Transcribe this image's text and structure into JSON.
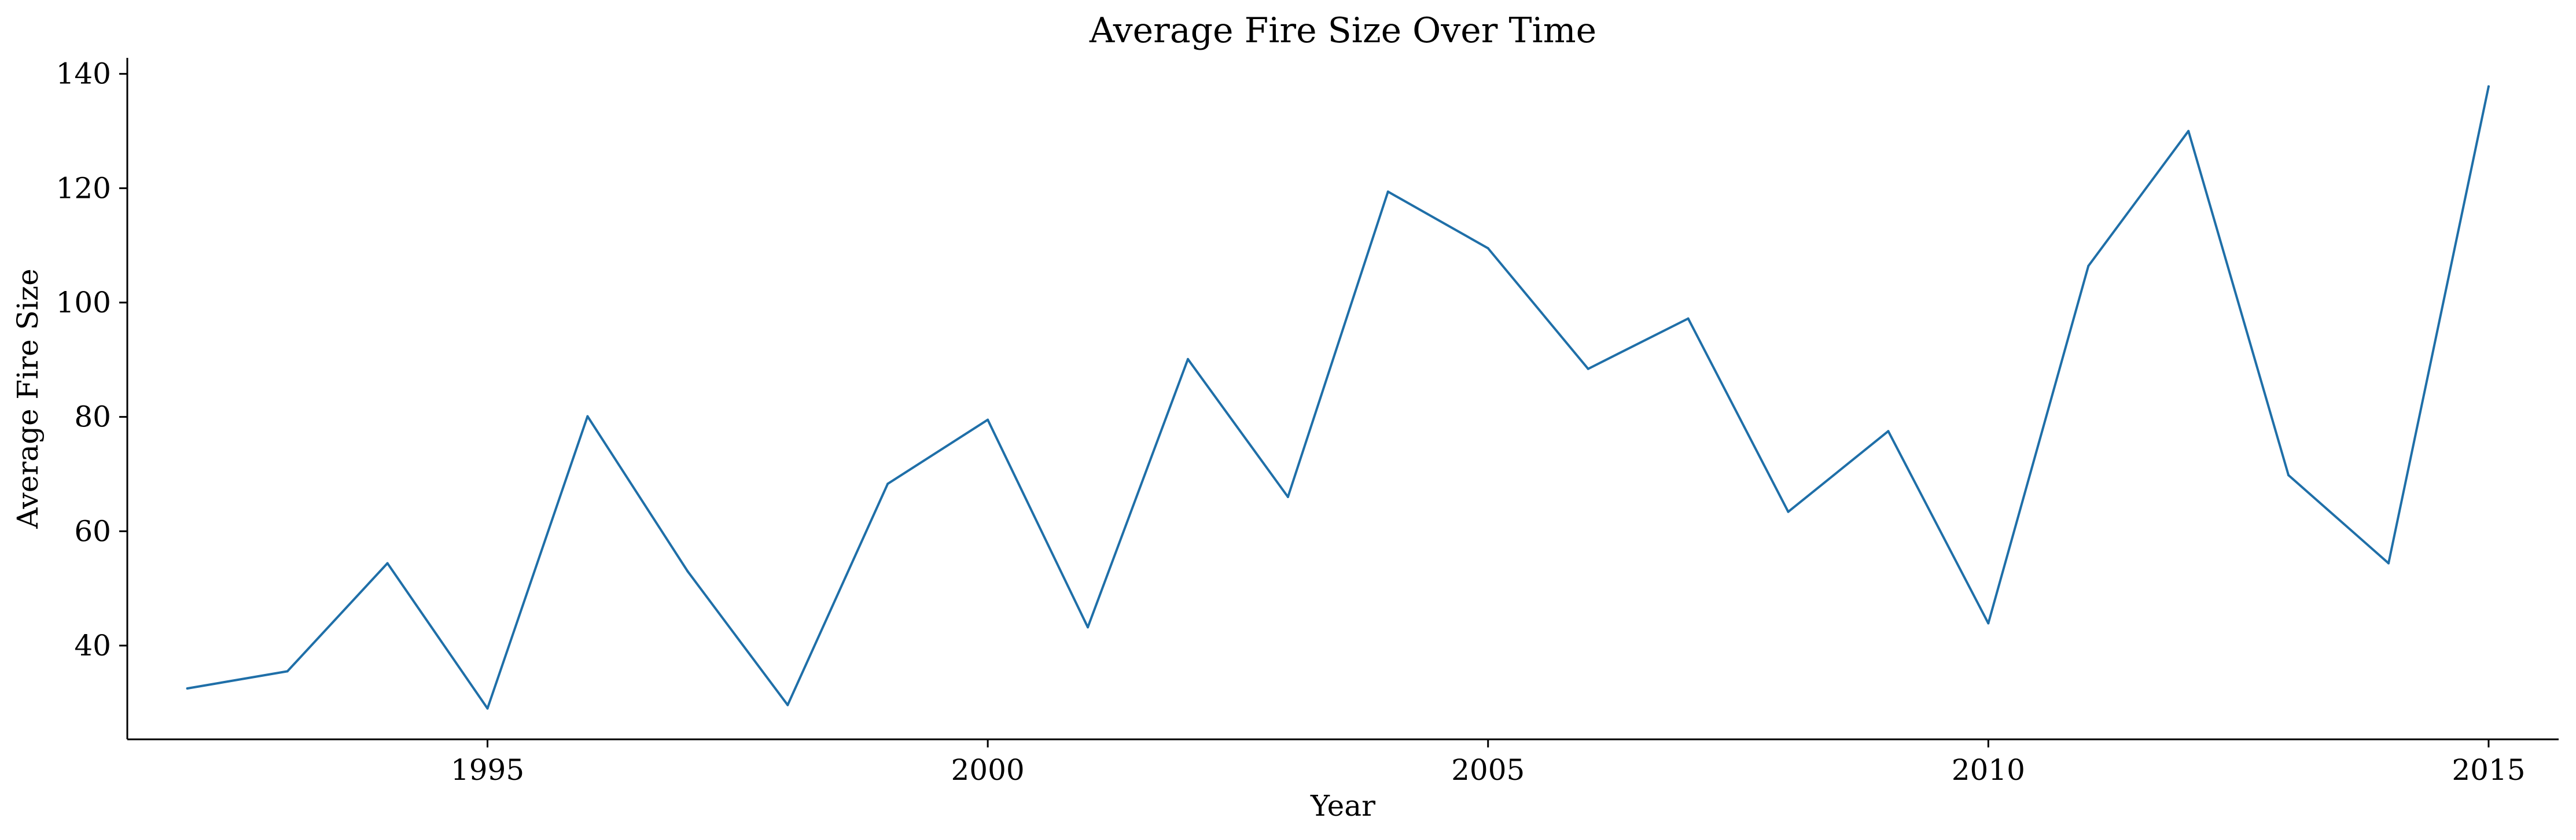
{
  "colors": {
    "line": "#1f6fa8",
    "axis": "#000000",
    "background": "#ffffff"
  },
  "chart_data": {
    "type": "line",
    "title": "Average Fire Size Over Time",
    "xlabel": "Year",
    "ylabel": "Average Fire Size",
    "xlim": [
      1991.4,
      2015.7
    ],
    "ylim": [
      23.6,
      142.8
    ],
    "xticks": [
      1995,
      2000,
      2005,
      2010,
      2015
    ],
    "yticks": [
      40,
      60,
      80,
      100,
      120,
      140
    ],
    "grid": false,
    "legend": "none",
    "series": [
      {
        "x": [
          1992,
          1993,
          1994,
          1995,
          1996,
          1997,
          1998,
          1999,
          2000,
          2001,
          2002,
          2003,
          2004,
          2005,
          2006,
          2007,
          2008,
          2009,
          2010,
          2011,
          2012,
          2013,
          2014,
          2015
        ],
        "values": [
          32.5,
          35.5,
          54.4,
          29,
          80.1,
          53,
          29.6,
          68.3,
          79.5,
          43.2,
          90.1,
          66,
          119.4,
          109.5,
          88.4,
          97.2,
          63.4,
          77.5,
          43.9,
          106.4,
          130,
          69.8,
          54.4,
          137.8
        ]
      }
    ]
  }
}
